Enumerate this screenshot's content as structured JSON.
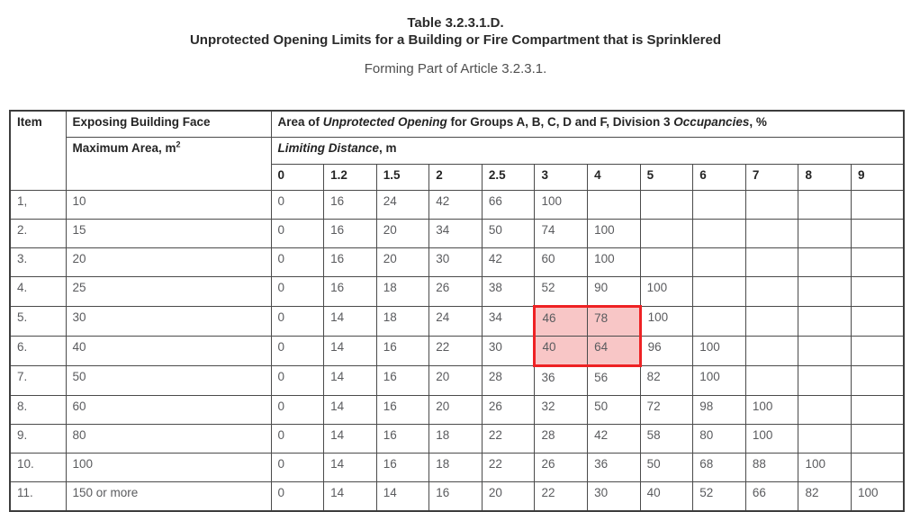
{
  "title": {
    "line1": "Table 3.2.3.1.D.",
    "line2": "Unprotected Opening Limits for a Building or Fire Compartment that is Sprinklered",
    "subtitle": "Forming Part of Article 3.2.3.1."
  },
  "table": {
    "headers": {
      "item": "Item",
      "exposing_face": "Exposing Building Face",
      "max_area_text": "Maximum Area, m",
      "max_area_sup": "2",
      "area_header": {
        "pre": "Area of ",
        "italic1": "Unprotected Opening",
        "mid": " for Groups A, B, C, D and F, Division 3 ",
        "italic2": "Occupancies",
        "post": ", %"
      },
      "limiting_distance": {
        "italic": "Limiting Distance",
        "post": ", m"
      }
    },
    "distance_cols": [
      "0",
      "1.2",
      "1.5",
      "2",
      "2.5",
      "3",
      "4",
      "5",
      "6",
      "7",
      "8",
      "9"
    ],
    "rows": [
      {
        "item": "1,",
        "area": "10",
        "values": [
          "0",
          "16",
          "24",
          "42",
          "66",
          "100",
          "",
          "",
          "",
          "",
          "",
          ""
        ]
      },
      {
        "item": "2.",
        "area": "15",
        "values": [
          "0",
          "16",
          "20",
          "34",
          "50",
          "74",
          "100",
          "",
          "",
          "",
          "",
          ""
        ]
      },
      {
        "item": "3.",
        "area": "20",
        "values": [
          "0",
          "16",
          "20",
          "30",
          "42",
          "60",
          "100",
          "",
          "",
          "",
          "",
          ""
        ]
      },
      {
        "item": "4.",
        "area": "25",
        "values": [
          "0",
          "16",
          "18",
          "26",
          "38",
          "52",
          "90",
          "100",
          "",
          "",
          "",
          ""
        ]
      },
      {
        "item": "5.",
        "area": "30",
        "values": [
          "0",
          "14",
          "18",
          "24",
          "34",
          "46",
          "78",
          "100",
          "",
          "",
          "",
          ""
        ]
      },
      {
        "item": "6.",
        "area": "40",
        "values": [
          "0",
          "14",
          "16",
          "22",
          "30",
          "40",
          "64",
          "96",
          "100",
          "",
          "",
          ""
        ]
      },
      {
        "item": "7.",
        "area": "50",
        "values": [
          "0",
          "14",
          "16",
          "20",
          "28",
          "36",
          "56",
          "82",
          "100",
          "",
          "",
          ""
        ]
      },
      {
        "item": "8.",
        "area": "60",
        "values": [
          "0",
          "14",
          "16",
          "20",
          "26",
          "32",
          "50",
          "72",
          "98",
          "100",
          "",
          ""
        ]
      },
      {
        "item": "9.",
        "area": "80",
        "values": [
          "0",
          "14",
          "16",
          "18",
          "22",
          "28",
          "42",
          "58",
          "80",
          "100",
          "",
          ""
        ]
      },
      {
        "item": "10.",
        "area": "100",
        "values": [
          "0",
          "14",
          "16",
          "18",
          "22",
          "26",
          "36",
          "50",
          "68",
          "88",
          "100",
          ""
        ]
      },
      {
        "item": "11.",
        "area": "150 or more",
        "values": [
          "0",
          "14",
          "14",
          "16",
          "20",
          "22",
          "30",
          "40",
          "52",
          "66",
          "82",
          "100"
        ]
      }
    ],
    "highlight": {
      "row_start": 4,
      "row_end": 5,
      "col_start": 5,
      "col_end": 6,
      "fill": "#f8c6c6",
      "border": "#ee2224"
    }
  }
}
